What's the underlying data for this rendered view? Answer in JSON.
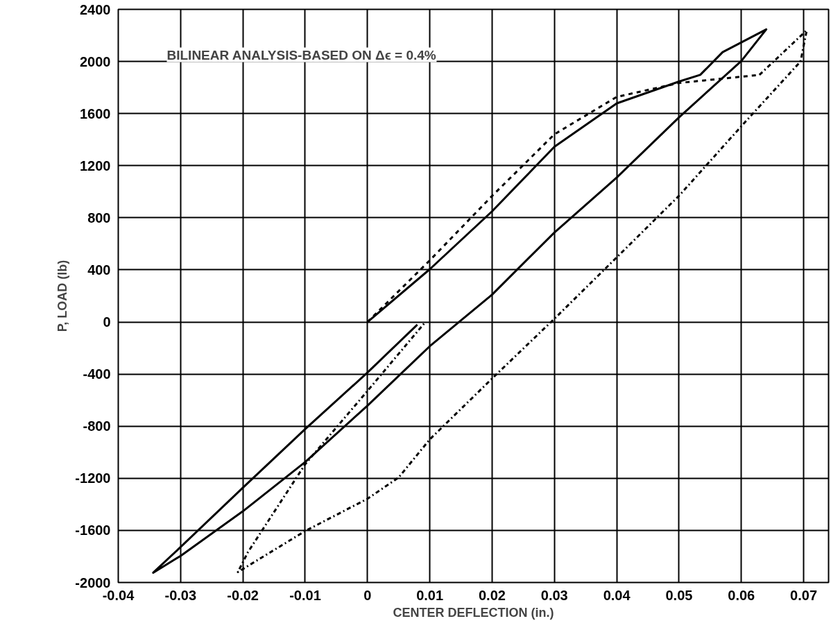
{
  "chart_data": {
    "type": "line",
    "xlabel": "CENTER DEFLECTION (in.)",
    "ylabel": "P, LOAD (lb)",
    "annotations": [
      "BILINEAR ANALYSIS-BASED ON Δϵ = 0.4%"
    ],
    "xlim": [
      -0.04,
      0.074
    ],
    "ylim": [
      -2000,
      2400
    ],
    "xticks": [
      -0.04,
      -0.03,
      -0.02,
      -0.01,
      0,
      0.01,
      0.02,
      0.03,
      0.04,
      0.05,
      0.06,
      0.07
    ],
    "yticks": [
      -2000,
      -1600,
      -1200,
      -800,
      -400,
      0,
      400,
      800,
      1200,
      1600,
      2000,
      2400
    ],
    "grid": true,
    "marker": "none",
    "series": [
      {
        "color": "#000000",
        "line_style": "solid",
        "x": [
          0,
          0.01,
          0.02,
          0.03,
          0.04,
          0.05,
          0.0534,
          0.057,
          0.064,
          0.06,
          0.05,
          0.04,
          0.03,
          0.02,
          0.01,
          0,
          -0.01,
          -0.02,
          -0.03,
          -0.0344,
          -0.03,
          -0.02,
          -0.01,
          0,
          0.008
        ],
        "values": [
          0,
          405,
          850,
          1345,
          1678,
          1846,
          1897,
          2072,
          2246,
          2004,
          1571,
          1109,
          687,
          210,
          -186,
          -642,
          -1075,
          -1453,
          -1796,
          -1925,
          -1728,
          -1272,
          -822,
          -388,
          -20
        ]
      },
      {
        "color": "#000000",
        "line_style": "dashed",
        "x": [
          0,
          0.01,
          0.02,
          0.03,
          0.04,
          0.05,
          0.0629
        ],
        "values": [
          0,
          473,
          968,
          1441,
          1728,
          1835,
          1897
        ]
      },
      {
        "color": "#000000",
        "line_style": "dashdot",
        "x": [
          0.0629,
          0.0705,
          0.0695,
          0.06,
          0.05,
          0.04,
          0.03,
          0.02,
          0.01,
          0.005,
          0,
          -0.01,
          -0.0208,
          -0.0192,
          -0.01,
          0,
          0.0093
        ],
        "values": [
          1897,
          2240,
          2000,
          1503,
          969,
          496,
          25,
          -434,
          -901,
          -1194,
          -1357,
          -1605,
          -1920,
          -1768,
          -1092,
          -529,
          0
        ]
      }
    ]
  }
}
